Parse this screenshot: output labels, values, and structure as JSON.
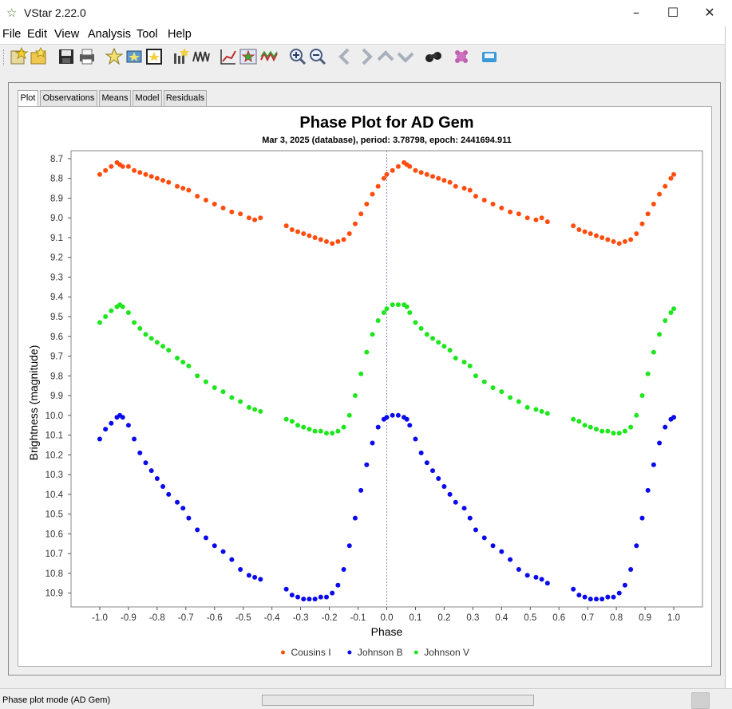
{
  "window": {
    "title": "VStar 2.22.0",
    "app_icon": "star-icon",
    "minimize": "–",
    "maximize": "☐",
    "close": "✕"
  },
  "menu": [
    "File",
    "Edit",
    "View",
    "Analysis",
    "Tool",
    "Help"
  ],
  "toolbar": {
    "icons": [
      "new-star-icon",
      "open-file-icon",
      "save-icon",
      "print-icon",
      "info-icon",
      "observation-details-icon",
      "filter-icon",
      "mean-icon",
      "time-series-icon",
      "phase-plot-icon",
      "polynomial-fit-icon",
      "model-icon",
      "zoom-in-icon",
      "zoom-out-icon",
      "pan-left-icon",
      "pan-right-icon",
      "pan-up-icon",
      "pan-down-icon",
      "binoculars-icon",
      "plugin-icon",
      "tool-icon"
    ]
  },
  "tabs": [
    "Plot",
    "Observations",
    "Means",
    "Model",
    "Residuals"
  ],
  "active_tab": "Plot",
  "status": {
    "text": "Phase plot mode (AD Gem)"
  },
  "chart_data": {
    "type": "scatter",
    "title": "Phase Plot for AD Gem",
    "subtitle": "Mar 3, 2025 (database), period: 3.78798, epoch: 2441694.911",
    "xlabel": "Phase",
    "ylabel": "Brightness (magnitude)",
    "xlim": [
      -1.1,
      1.1
    ],
    "ylim": [
      8.7,
      10.95
    ],
    "y_inverted": true,
    "x_ticks": [
      "-1.0",
      "-0.9",
      "-0.8",
      "-0.7",
      "-0.6",
      "-0.5",
      "-0.4",
      "-0.3",
      "-0.2",
      "-0.1",
      "0.0",
      "0.1",
      "0.2",
      "0.3",
      "0.4",
      "0.5",
      "0.6",
      "0.7",
      "0.8",
      "0.9",
      "1.0"
    ],
    "y_ticks": [
      "8.7",
      "8.8",
      "8.9",
      "9.0",
      "9.1",
      "9.2",
      "9.3",
      "9.4",
      "9.5",
      "9.6",
      "9.7",
      "9.8",
      "9.9",
      "10.0",
      "10.1",
      "10.2",
      "10.3",
      "10.4",
      "10.5",
      "10.6",
      "10.7",
      "10.8",
      "10.9"
    ],
    "zero_line": true,
    "grid": false,
    "legend_position": "bottom",
    "series": [
      {
        "name": "Cousins I",
        "color": "#ff4d0f",
        "x": [
          -1.0,
          -0.98,
          -0.96,
          -0.94,
          -0.93,
          -0.92,
          -0.9,
          -0.88,
          -0.86,
          -0.84,
          -0.82,
          -0.8,
          -0.78,
          -0.76,
          -0.73,
          -0.71,
          -0.69,
          -0.66,
          -0.63,
          -0.6,
          -0.57,
          -0.54,
          -0.51,
          -0.48,
          -0.46,
          -0.44,
          -0.35,
          -0.33,
          -0.31,
          -0.29,
          -0.27,
          -0.25,
          -0.23,
          -0.21,
          -0.19,
          -0.17,
          -0.15,
          -0.13,
          -0.11,
          -0.09,
          -0.07,
          -0.05,
          -0.03,
          -0.01,
          0.0,
          0.02,
          0.04,
          0.06,
          0.07,
          0.08,
          0.1,
          0.12,
          0.14,
          0.16,
          0.18,
          0.2,
          0.22,
          0.24,
          0.27,
          0.29,
          0.31,
          0.34,
          0.37,
          0.4,
          0.43,
          0.46,
          0.49,
          0.52,
          0.54,
          0.56,
          0.65,
          0.67,
          0.69,
          0.71,
          0.73,
          0.75,
          0.77,
          0.79,
          0.81,
          0.83,
          0.85,
          0.87,
          0.89,
          0.91,
          0.93,
          0.95,
          0.97,
          0.99,
          1.0
        ],
        "y": [
          8.78,
          8.76,
          8.74,
          8.72,
          8.73,
          8.74,
          8.74,
          8.76,
          8.77,
          8.78,
          8.79,
          8.8,
          8.81,
          8.82,
          8.84,
          8.85,
          8.86,
          8.89,
          8.91,
          8.93,
          8.95,
          8.97,
          8.98,
          9.0,
          9.01,
          9.0,
          9.04,
          9.06,
          9.07,
          9.08,
          9.09,
          9.1,
          9.11,
          9.12,
          9.13,
          9.12,
          9.11,
          9.08,
          9.03,
          8.98,
          8.93,
          8.88,
          8.84,
          8.8,
          8.78,
          8.76,
          8.74,
          8.72,
          8.73,
          8.74,
          8.76,
          8.77,
          8.78,
          8.79,
          8.8,
          8.81,
          8.82,
          8.84,
          8.85,
          8.86,
          8.89,
          8.91,
          8.93,
          8.95,
          8.97,
          8.98,
          9.0,
          9.01,
          9.0,
          9.02,
          9.04,
          9.06,
          9.07,
          9.08,
          9.09,
          9.1,
          9.11,
          9.12,
          9.13,
          9.12,
          9.11,
          9.08,
          9.03,
          8.98,
          8.93,
          8.88,
          8.84,
          8.8,
          8.78
        ]
      },
      {
        "name": "Johnson B",
        "color": "#0a0aeb",
        "x": [
          -1.0,
          -0.98,
          -0.96,
          -0.94,
          -0.93,
          -0.92,
          -0.9,
          -0.88,
          -0.86,
          -0.84,
          -0.82,
          -0.8,
          -0.78,
          -0.76,
          -0.73,
          -0.71,
          -0.69,
          -0.66,
          -0.63,
          -0.6,
          -0.57,
          -0.54,
          -0.51,
          -0.48,
          -0.46,
          -0.44,
          -0.35,
          -0.33,
          -0.31,
          -0.29,
          -0.27,
          -0.25,
          -0.23,
          -0.21,
          -0.19,
          -0.17,
          -0.15,
          -0.13,
          -0.11,
          -0.09,
          -0.07,
          -0.05,
          -0.03,
          -0.01,
          0.0,
          0.02,
          0.04,
          0.06,
          0.07,
          0.08,
          0.1,
          0.12,
          0.14,
          0.16,
          0.18,
          0.2,
          0.22,
          0.24,
          0.27,
          0.29,
          0.31,
          0.34,
          0.37,
          0.4,
          0.43,
          0.46,
          0.49,
          0.52,
          0.54,
          0.56,
          0.65,
          0.67,
          0.69,
          0.71,
          0.73,
          0.75,
          0.77,
          0.79,
          0.81,
          0.83,
          0.85,
          0.87,
          0.89,
          0.91,
          0.93,
          0.95,
          0.97,
          0.99,
          1.0
        ],
        "y": [
          10.12,
          10.07,
          10.04,
          10.01,
          10.0,
          10.01,
          10.05,
          10.12,
          10.19,
          10.24,
          10.28,
          10.32,
          10.36,
          10.4,
          10.44,
          10.47,
          10.52,
          10.58,
          10.62,
          10.66,
          10.69,
          10.73,
          10.78,
          10.81,
          10.82,
          10.83,
          10.88,
          10.91,
          10.92,
          10.93,
          10.93,
          10.93,
          10.92,
          10.92,
          10.9,
          10.86,
          10.78,
          10.66,
          10.52,
          10.38,
          10.25,
          10.14,
          10.06,
          10.02,
          10.01,
          10.0,
          10.0,
          10.01,
          10.02,
          10.05,
          10.12,
          10.19,
          10.24,
          10.28,
          10.32,
          10.36,
          10.4,
          10.44,
          10.47,
          10.52,
          10.58,
          10.62,
          10.66,
          10.69,
          10.73,
          10.78,
          10.81,
          10.82,
          10.83,
          10.85,
          10.88,
          10.91,
          10.92,
          10.93,
          10.93,
          10.93,
          10.92,
          10.92,
          10.9,
          10.86,
          10.78,
          10.66,
          10.52,
          10.38,
          10.25,
          10.14,
          10.06,
          10.02,
          10.01
        ]
      },
      {
        "name": "Johnson V",
        "color": "#1ee61e",
        "x": [
          -1.0,
          -0.98,
          -0.96,
          -0.94,
          -0.93,
          -0.92,
          -0.9,
          -0.88,
          -0.86,
          -0.84,
          -0.82,
          -0.8,
          -0.78,
          -0.76,
          -0.73,
          -0.71,
          -0.69,
          -0.66,
          -0.63,
          -0.6,
          -0.57,
          -0.54,
          -0.51,
          -0.48,
          -0.46,
          -0.44,
          -0.35,
          -0.33,
          -0.31,
          -0.29,
          -0.27,
          -0.25,
          -0.23,
          -0.21,
          -0.19,
          -0.17,
          -0.15,
          -0.13,
          -0.11,
          -0.09,
          -0.07,
          -0.05,
          -0.03,
          -0.01,
          0.0,
          0.02,
          0.04,
          0.06,
          0.07,
          0.08,
          0.1,
          0.12,
          0.14,
          0.16,
          0.18,
          0.2,
          0.22,
          0.24,
          0.27,
          0.29,
          0.31,
          0.34,
          0.37,
          0.4,
          0.43,
          0.46,
          0.49,
          0.52,
          0.54,
          0.56,
          0.65,
          0.67,
          0.69,
          0.71,
          0.73,
          0.75,
          0.77,
          0.79,
          0.81,
          0.83,
          0.85,
          0.87,
          0.89,
          0.91,
          0.93,
          0.95,
          0.97,
          0.99,
          1.0
        ],
        "y": [
          9.53,
          9.5,
          9.47,
          9.45,
          9.44,
          9.45,
          9.48,
          9.53,
          9.56,
          9.59,
          9.61,
          9.63,
          9.65,
          9.67,
          9.71,
          9.73,
          9.75,
          9.8,
          9.83,
          9.86,
          9.88,
          9.91,
          9.93,
          9.96,
          9.97,
          9.98,
          10.02,
          10.03,
          10.05,
          10.06,
          10.07,
          10.08,
          10.08,
          10.09,
          10.09,
          10.08,
          10.06,
          10.0,
          9.9,
          9.79,
          9.68,
          9.59,
          9.52,
          9.48,
          9.46,
          9.44,
          9.44,
          9.44,
          9.45,
          9.48,
          9.53,
          9.56,
          9.59,
          9.61,
          9.63,
          9.65,
          9.67,
          9.71,
          9.73,
          9.75,
          9.8,
          9.83,
          9.86,
          9.88,
          9.91,
          9.93,
          9.96,
          9.97,
          9.98,
          9.99,
          10.02,
          10.03,
          10.05,
          10.06,
          10.07,
          10.08,
          10.08,
          10.09,
          10.09,
          10.08,
          10.06,
          10.0,
          9.9,
          9.79,
          9.68,
          9.59,
          9.52,
          9.48,
          9.46
        ]
      }
    ]
  }
}
